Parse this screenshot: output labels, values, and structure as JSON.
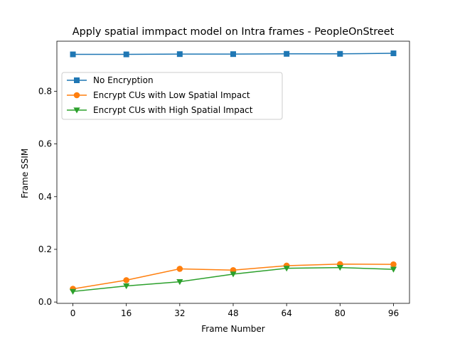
{
  "chart_data": {
    "type": "line",
    "title": "Apply spatial immpact model on Intra frames - PeopleOnStreet",
    "xlabel": "Frame Number",
    "ylabel": "Frame SSIM",
    "x": [
      0,
      16,
      32,
      48,
      64,
      80,
      96
    ],
    "xticks": [
      "0",
      "16",
      "32",
      "48",
      "64",
      "80",
      "96"
    ],
    "yticks": [
      "0.0",
      "0.2",
      "0.4",
      "0.6",
      "0.8"
    ],
    "xlim": [
      -4.8,
      100.8
    ],
    "ylim": [
      -0.005,
      0.99
    ],
    "legend_position": "upper-left",
    "grid": false,
    "series": [
      {
        "name": "No Encryption",
        "color": "#1f77b4",
        "marker": "square",
        "values": [
          0.94,
          0.94,
          0.941,
          0.941,
          0.942,
          0.942,
          0.944
        ]
      },
      {
        "name": "Encrypt CUs with Low Spatial Impact",
        "color": "#ff7f0e",
        "marker": "circle",
        "values": [
          0.05,
          0.083,
          0.126,
          0.121,
          0.138,
          0.144,
          0.143
        ]
      },
      {
        "name": "Encrypt CUs with High Spatial Impact",
        "color": "#2ca02c",
        "marker": "triangle-down",
        "values": [
          0.04,
          0.061,
          0.077,
          0.106,
          0.128,
          0.131,
          0.124
        ]
      }
    ]
  }
}
